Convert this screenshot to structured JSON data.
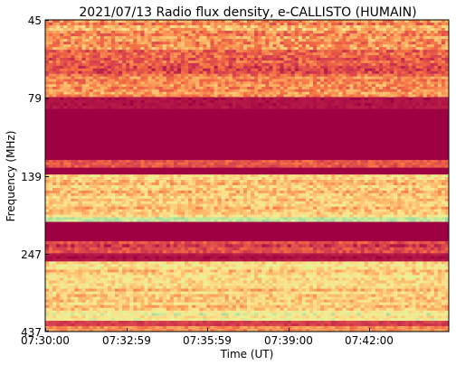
{
  "chart_data": {
    "type": "heatmap",
    "title": "2021/07/13  Radio flux density, e-CALLISTO (HUMAIN)",
    "xlabel": "Time (UT)",
    "ylabel": "Frequency (MHz)",
    "x_ticks": [
      "07:30:00",
      "07:32:59",
      "07:35:59",
      "07:39:00",
      "07:42:00"
    ],
    "y_ticks": [
      "45",
      "79",
      "139",
      "247",
      "437"
    ],
    "x_range": [
      "07:30:00",
      "07:44:59"
    ],
    "y_range_mhz": [
      45,
      437
    ],
    "y_axis_inverted": true,
    "colormap": "Spectral (dark red = low, yellow = mid, teal = high)",
    "colors": {
      "low": "#9e0142",
      "mid_low": "#d53e4f",
      "mid": "#f46d43",
      "mid_high": "#fdae61",
      "high": "#fee08b",
      "very_high": "#e6f598",
      "peak": "#66c2a5"
    },
    "grid": false,
    "legend": "none",
    "band_intensity_profile": [
      {
        "freq_from_mhz": 45,
        "freq_to_mhz": 56,
        "level": 0.45,
        "noise": 0.35
      },
      {
        "freq_from_mhz": 56,
        "freq_to_mhz": 68,
        "level": 0.3,
        "noise": 0.3
      },
      {
        "freq_from_mhz": 68,
        "freq_to_mhz": 79,
        "level": 0.45,
        "noise": 0.3
      },
      {
        "freq_from_mhz": 79,
        "freq_to_mhz": 86,
        "level": 0.05,
        "noise": 0.05
      },
      {
        "freq_from_mhz": 86,
        "freq_to_mhz": 125,
        "level": 0.0,
        "noise": 0.0
      },
      {
        "freq_from_mhz": 125,
        "freq_to_mhz": 132,
        "level": 0.3,
        "noise": 0.2
      },
      {
        "freq_from_mhz": 132,
        "freq_to_mhz": 139,
        "level": 0.0,
        "noise": 0.0
      },
      {
        "freq_from_mhz": 139,
        "freq_to_mhz": 190,
        "level": 0.6,
        "noise": 0.3
      },
      {
        "freq_from_mhz": 190,
        "freq_to_mhz": 196,
        "level": 0.9,
        "noise": 0.08
      },
      {
        "freq_from_mhz": 196,
        "freq_to_mhz": 226,
        "level": 0.0,
        "noise": 0.03
      },
      {
        "freq_from_mhz": 226,
        "freq_to_mhz": 247,
        "level": 0.2,
        "noise": 0.2
      },
      {
        "freq_from_mhz": 247,
        "freq_to_mhz": 262,
        "level": 0.05,
        "noise": 0.05
      },
      {
        "freq_from_mhz": 262,
        "freq_to_mhz": 375,
        "level": 0.62,
        "noise": 0.3
      },
      {
        "freq_from_mhz": 375,
        "freq_to_mhz": 404,
        "level": 0.75,
        "noise": 0.25
      },
      {
        "freq_from_mhz": 404,
        "freq_to_mhz": 420,
        "level": 0.15,
        "noise": 0.1
      },
      {
        "freq_from_mhz": 420,
        "freq_to_mhz": 437,
        "level": 0.4,
        "noise": 0.2
      }
    ]
  }
}
